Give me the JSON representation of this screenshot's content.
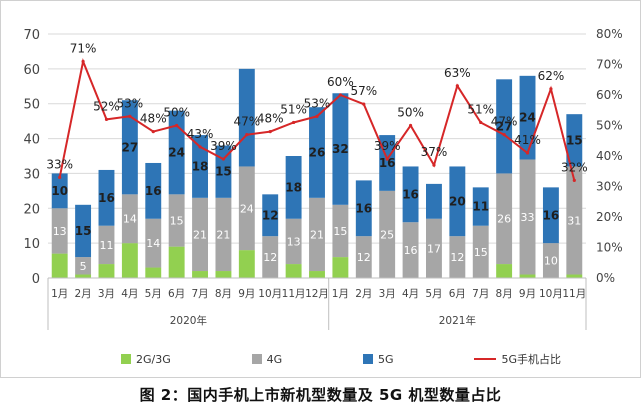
{
  "caption": "图 2：国内手机上市新机型数量及 5G 机型数量占比",
  "legend": {
    "g23": "2G/3G",
    "g4": "4G",
    "g5": "5G",
    "share": "5G手机占比"
  },
  "colors": {
    "g23": "#92d050",
    "g4": "#a6a6a6",
    "g5": "#2e75b6",
    "share": "#d62728",
    "axis_text": "#444444",
    "grid": "#d9d9d9",
    "label_dark": "#1f1f1f",
    "label_white": "#ffffff"
  },
  "chart_data": {
    "type": "bar",
    "stacked": true,
    "categories": [
      "1月",
      "2月",
      "3月",
      "4月",
      "5月",
      "6月",
      "7月",
      "8月",
      "9月",
      "10月",
      "11月",
      "12月",
      "1月",
      "2月",
      "3月",
      "4月",
      "5月",
      "6月",
      "7月",
      "8月",
      "9月",
      "10月",
      "11月"
    ],
    "year_groups": [
      {
        "label": "2020年",
        "start": 0,
        "end": 11
      },
      {
        "label": "2021年",
        "start": 12,
        "end": 22
      }
    ],
    "series": [
      {
        "name": "2G/3G",
        "values": [
          7,
          1,
          4,
          10,
          3,
          9,
          2,
          2,
          8,
          0,
          4,
          2,
          6,
          0,
          0,
          0,
          0,
          0,
          0,
          4,
          1,
          0,
          1
        ],
        "labels": [
          "",
          "",
          "",
          "",
          "",
          "",
          "",
          "",
          "",
          "",
          "",
          "",
          "",
          "",
          "",
          "",
          "",
          "",
          "",
          "",
          "",
          "",
          ""
        ]
      },
      {
        "name": "4G",
        "values": [
          13,
          5,
          11,
          14,
          14,
          15,
          21,
          21,
          24,
          12,
          13,
          21,
          15,
          12,
          25,
          16,
          17,
          12,
          15,
          26,
          33,
          10,
          31
        ],
        "labels": [
          "13",
          "5",
          "11",
          "14",
          "14",
          "15",
          "21",
          "21",
          "24",
          "12",
          "13",
          "21",
          "15",
          "12",
          "25",
          "16",
          "17",
          "12",
          "15",
          "26",
          "33",
          "10",
          "31"
        ]
      },
      {
        "name": "5G",
        "values": [
          10,
          15,
          16,
          27,
          16,
          24,
          18,
          15,
          28,
          12,
          18,
          26,
          32,
          16,
          16,
          16,
          10,
          20,
          11,
          27,
          24,
          16,
          15
        ],
        "labels": [
          "10",
          "15",
          "16",
          "27",
          "16",
          "24",
          "18",
          "15",
          "",
          "12",
          "18",
          "26",
          "32",
          "16",
          "16",
          "16",
          "",
          "20",
          "11",
          "27",
          "24",
          "16",
          "15"
        ]
      }
    ],
    "line": {
      "name": "5G手机占比",
      "values": [
        33,
        71,
        52,
        53,
        48,
        50,
        43,
        39,
        47,
        48,
        51,
        53,
        60,
        57,
        39,
        50,
        37,
        63,
        51,
        47,
        41,
        62,
        32
      ],
      "labels": [
        "33%",
        "71%",
        "52%",
        "53%",
        "48%",
        "50%",
        "43%",
        "39%",
        "47%",
        "48%",
        "51%",
        "53%",
        "60%",
        "57%",
        "39%",
        "50%",
        "37%",
        "63%",
        "51%",
        "47%",
        "41%",
        "62%",
        "32%"
      ]
    },
    "y_left": {
      "min": 0,
      "max": 70,
      "step": 10,
      "ticks": [
        "0",
        "10",
        "20",
        "30",
        "40",
        "50",
        "60",
        "70"
      ]
    },
    "y_right": {
      "min": 0,
      "max": 80,
      "step": 10,
      "ticks": [
        "0%",
        "10%",
        "20%",
        "30%",
        "40%",
        "50%",
        "60%",
        "70%",
        "80%"
      ]
    },
    "grid": true,
    "legend_position": "bottom"
  }
}
